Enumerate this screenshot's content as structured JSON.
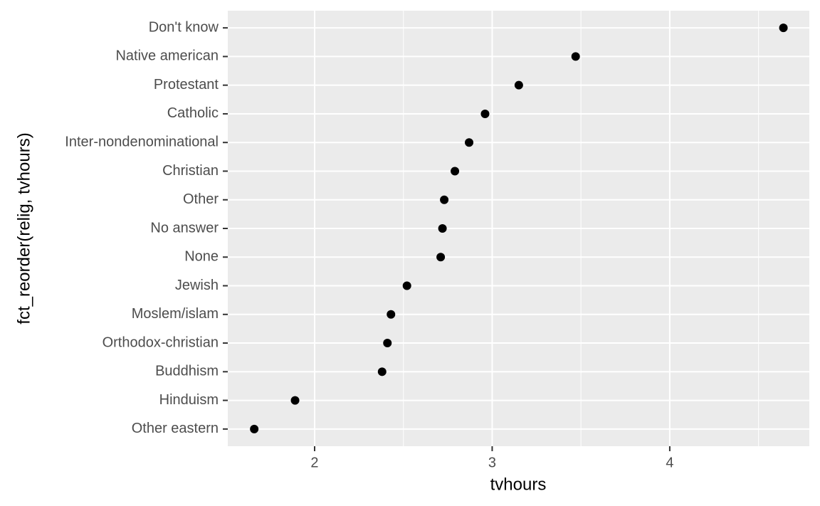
{
  "chart_data": {
    "type": "dot",
    "categories": [
      "Don't know",
      "Native american",
      "Protestant",
      "Catholic",
      "Inter-nondenominational",
      "Christian",
      "Other",
      "No answer",
      "None",
      "Jewish",
      "Moslem/islam",
      "Orthodox-christian",
      "Buddhism",
      "Hinduism",
      "Other eastern"
    ],
    "values": [
      4.64,
      3.47,
      3.15,
      2.96,
      2.87,
      2.79,
      2.73,
      2.72,
      2.71,
      2.52,
      2.43,
      2.41,
      2.38,
      1.89,
      1.66
    ],
    "color": "#000000",
    "x_label": "tvhours",
    "y_label": "fct_reorder(relig, tvhours)",
    "xlim": [
      1.511,
      4.786
    ],
    "xticks": [
      2,
      3,
      4
    ],
    "minor_xticks": [
      2.5,
      3.5,
      4.5
    ],
    "grid": true
  }
}
